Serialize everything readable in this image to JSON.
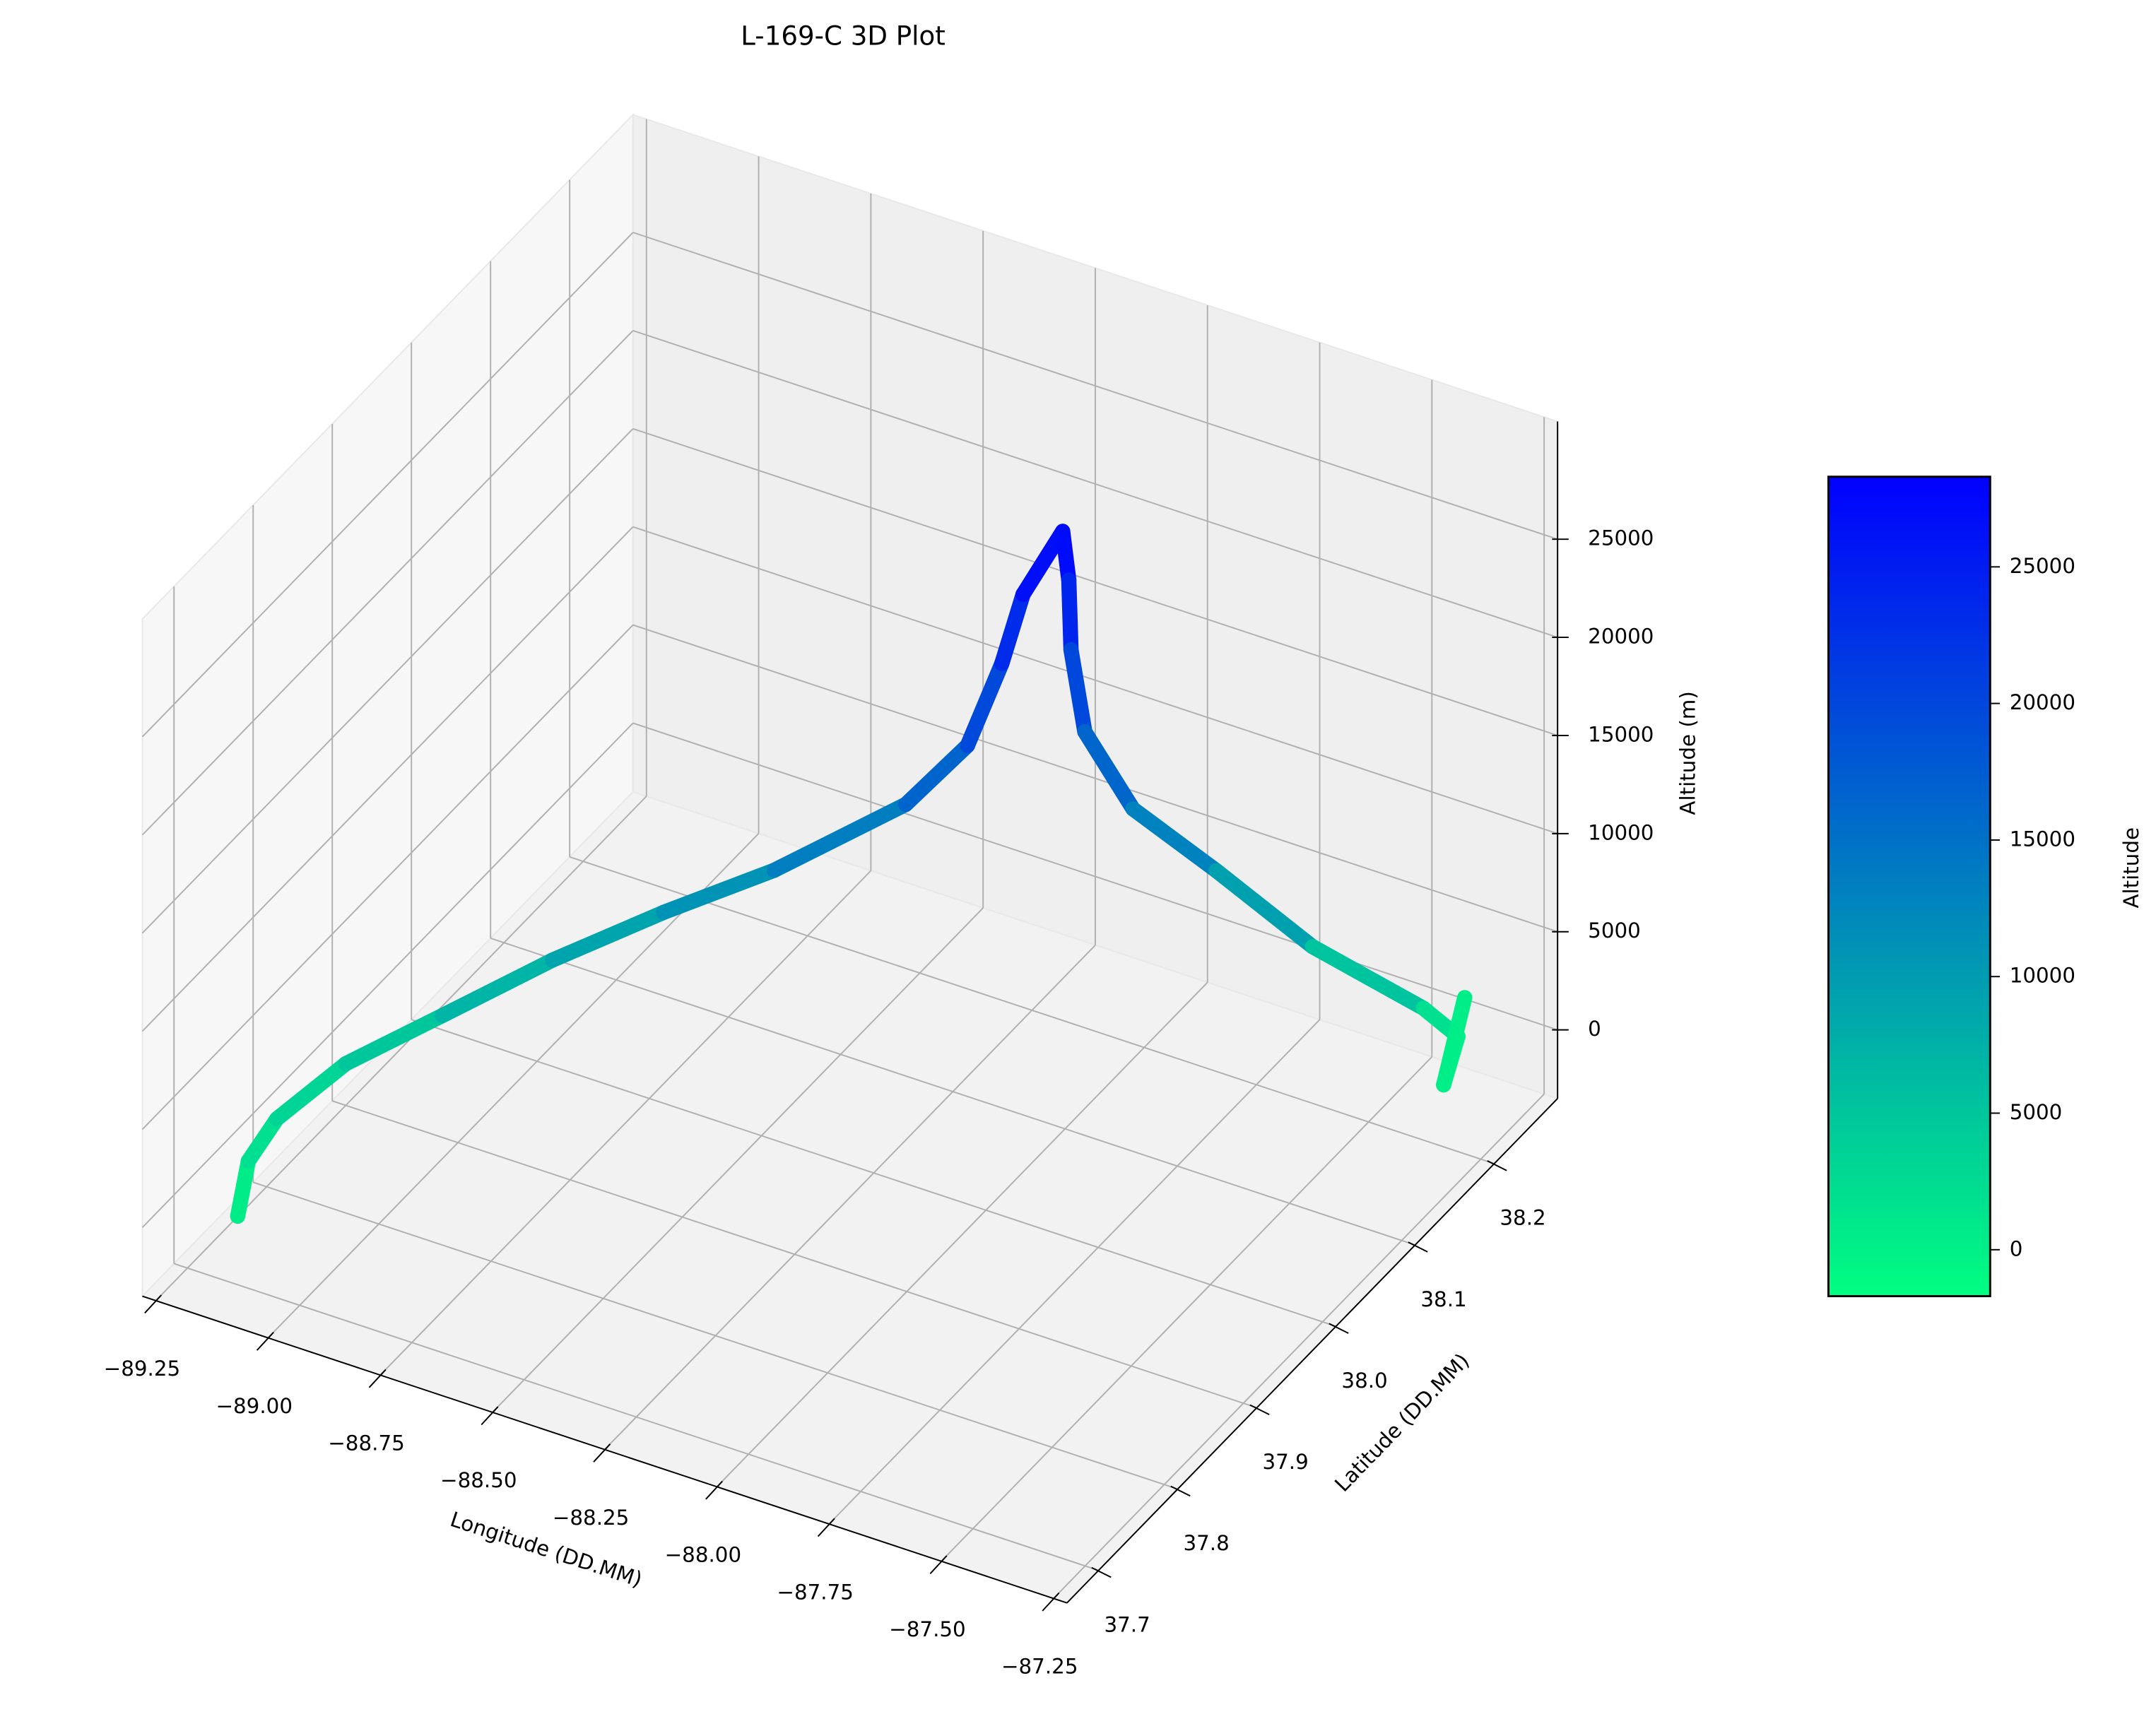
{
  "chart_data": {
    "type": "line3d",
    "title": "L-169-C 3D Plot",
    "xlabel": "Longitude (DD.MM)",
    "ylabel": "Latitude (DD.MM)",
    "zlabel": "Altitude (m)",
    "x": [
      -89.154,
      -89.162,
      -89.151,
      -89.077,
      -88.929,
      -88.77,
      -88.597,
      -88.415,
      -88.205,
      -88.101,
      -88.065,
      -88.03,
      -87.97,
      -87.944,
      -87.955,
      -87.926,
      -87.831,
      -87.686,
      -87.528,
      -87.385,
      -87.345,
      -87.354,
      -87.381
    ],
    "y": [
      37.709,
      37.727,
      37.757,
      37.802,
      37.84,
      37.889,
      37.931,
      37.968,
      38.015,
      38.034,
      38.057,
      38.064,
      38.08,
      38.073,
      38.082,
      38.083,
      38.09,
      38.113,
      38.145,
      38.204,
      38.225,
      38.212,
      38.254
    ],
    "z": [
      -500,
      1500,
      2500,
      4000,
      6000,
      8000,
      10000,
      12000,
      15000,
      18000,
      21500,
      25000,
      28000,
      26000,
      22000,
      18000,
      14500,
      11500,
      7500,
      3000,
      1000,
      -1000,
      1500
    ],
    "xlim": [
      -89.28,
      -87.22
    ],
    "ylim": [
      37.66,
      38.28
    ],
    "zlim": [
      -3500,
      31000
    ],
    "xticks": [
      {
        "value": -89.25,
        "label": "−89.25"
      },
      {
        "value": -89.0,
        "label": "−89.00"
      },
      {
        "value": -88.75,
        "label": "−88.75"
      },
      {
        "value": -88.5,
        "label": "−88.50"
      },
      {
        "value": -88.25,
        "label": "−88.25"
      },
      {
        "value": -88.0,
        "label": "−88.00"
      },
      {
        "value": -87.75,
        "label": "−87.75"
      },
      {
        "value": -87.5,
        "label": "−87.50"
      },
      {
        "value": -87.25,
        "label": "−87.25"
      }
    ],
    "yticks": [
      37.7,
      37.8,
      37.9,
      {
        "value": 38.0,
        "label": "38.0"
      },
      38.1,
      38.2
    ],
    "zticks": [
      0,
      5000,
      10000,
      15000,
      20000,
      25000
    ],
    "colormap": {
      "low": "#00ff80",
      "high": "#0000ff"
    },
    "clim": [
      -1700,
      28300
    ],
    "colorbar": {
      "label": "Altitude",
      "ticks": [
        0,
        5000,
        10000,
        15000,
        20000,
        25000
      ]
    },
    "grid": true
  }
}
